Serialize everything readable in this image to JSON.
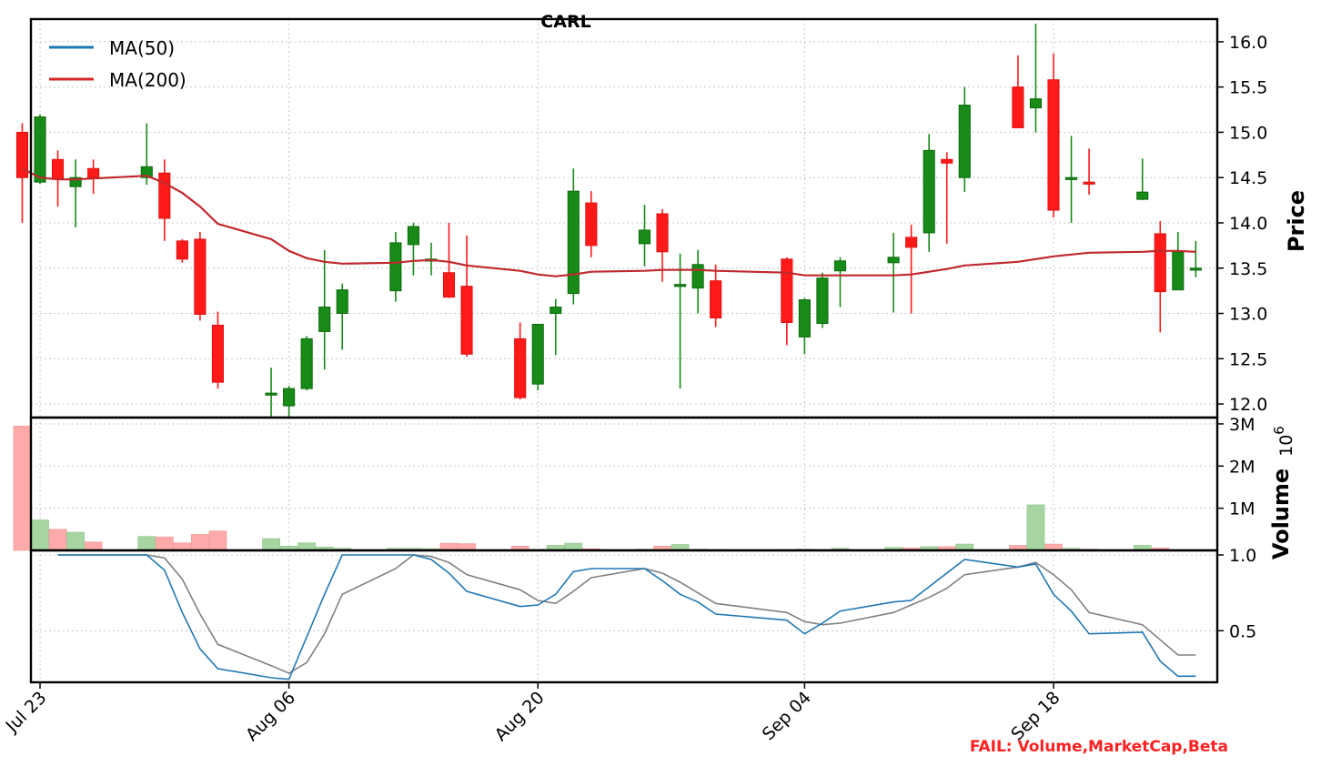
{
  "chart_data": {
    "type": "candlestick",
    "title": "CARL",
    "dates": [
      "2024-07-22",
      "2024-07-23",
      "2024-07-24",
      "2024-07-25",
      "2024-07-26",
      "2024-07-29",
      "2024-07-30",
      "2024-07-31",
      "2024-08-01",
      "2024-08-02",
      "2024-08-05",
      "2024-08-06",
      "2024-08-07",
      "2024-08-08",
      "2024-08-09",
      "2024-08-12",
      "2024-08-13",
      "2024-08-14",
      "2024-08-15",
      "2024-08-16",
      "2024-08-19",
      "2024-08-20",
      "2024-08-21",
      "2024-08-22",
      "2024-08-23",
      "2024-08-26",
      "2024-08-27",
      "2024-08-28",
      "2024-08-29",
      "2024-08-30",
      "2024-09-03",
      "2024-09-04",
      "2024-09-05",
      "2024-09-06",
      "2024-09-09",
      "2024-09-10",
      "2024-09-11",
      "2024-09-12",
      "2024-09-13",
      "2024-09-16",
      "2024-09-17",
      "2024-09-18",
      "2024-09-19",
      "2024-09-20",
      "2024-09-23",
      "2024-09-24",
      "2024-09-25",
      "2024-09-26"
    ],
    "x_tick_labels": [
      "Jul 23",
      "Aug 06",
      "Aug 20",
      "Sep 04",
      "Sep 18"
    ],
    "x_tick_dates": [
      "2024-07-23",
      "2024-08-06",
      "2024-08-20",
      "2024-09-04",
      "2024-09-18"
    ],
    "open": [
      15.0,
      14.45,
      14.7,
      14.4,
      14.6,
      14.5,
      14.55,
      13.8,
      13.82,
      12.87,
      12.12,
      11.98,
      12.17,
      12.8,
      13.0,
      13.25,
      13.76,
      13.6,
      13.45,
      13.3,
      12.72,
      12.22,
      13.0,
      13.22,
      14.22,
      13.77,
      14.1,
      13.32,
      13.28,
      13.36,
      13.6,
      12.74,
      12.89,
      13.47,
      13.56,
      13.84,
      13.89,
      14.7,
      14.5,
      15.5,
      15.27,
      15.58,
      14.5,
      14.45,
      14.26,
      13.88,
      13.26,
      13.5
    ],
    "high": [
      15.1,
      15.2,
      14.8,
      14.7,
      14.7,
      15.1,
      14.7,
      13.82,
      13.9,
      13.02,
      12.4,
      12.2,
      12.75,
      13.7,
      13.33,
      13.9,
      14.0,
      13.78,
      14.0,
      13.86,
      12.9,
      12.88,
      13.16,
      14.6,
      14.35,
      14.2,
      14.15,
      13.66,
      13.7,
      13.54,
      13.62,
      13.17,
      13.45,
      13.62,
      13.89,
      13.98,
      14.98,
      14.78,
      15.5,
      15.85,
      16.2,
      15.87,
      14.96,
      14.82,
      14.71,
      14.02,
      13.9,
      13.8
    ],
    "low": [
      14.0,
      14.43,
      14.18,
      13.95,
      14.32,
      14.42,
      13.8,
      13.56,
      12.92,
      12.17,
      11.84,
      11.85,
      12.15,
      12.38,
      12.6,
      13.13,
      13.42,
      13.42,
      13.17,
      12.52,
      12.05,
      12.15,
      12.54,
      13.1,
      13.62,
      13.52,
      13.35,
      12.17,
      13.0,
      12.85,
      12.65,
      12.55,
      12.84,
      13.07,
      13.01,
      13.0,
      13.68,
      13.77,
      14.34,
      15.05,
      15.0,
      14.06,
      14.0,
      14.31,
      14.25,
      12.79,
      13.26,
      13.4
    ],
    "close": [
      14.5,
      15.17,
      14.48,
      14.5,
      14.5,
      14.62,
      14.05,
      13.6,
      12.99,
      12.24,
      12.12,
      12.17,
      12.72,
      13.07,
      13.26,
      13.78,
      13.96,
      13.6,
      13.18,
      12.55,
      12.07,
      12.88,
      13.07,
      14.35,
      13.75,
      13.92,
      13.68,
      13.32,
      13.54,
      12.95,
      12.9,
      13.15,
      13.39,
      13.58,
      13.62,
      13.73,
      14.8,
      14.66,
      15.3,
      15.05,
      15.37,
      14.14,
      14.5,
      14.43,
      14.34,
      13.24,
      13.68,
      13.5
    ],
    "ma50": [
      14.6,
      14.5,
      14.48,
      14.48,
      14.49,
      14.52,
      14.44,
      14.33,
      14.18,
      13.99,
      13.82,
      13.69,
      13.61,
      13.57,
      13.55,
      13.56,
      13.58,
      13.59,
      13.57,
      13.53,
      13.47,
      13.43,
      13.41,
      13.43,
      13.46,
      13.47,
      13.48,
      13.48,
      13.48,
      13.47,
      13.45,
      13.42,
      13.42,
      13.42,
      13.42,
      13.43,
      13.46,
      13.49,
      13.53,
      13.57,
      13.6,
      13.63,
      13.65,
      13.67,
      13.68,
      13.69,
      13.69,
      13.68
    ],
    "ma_legend": [
      {
        "name": "MA(50)",
        "color": "#1f77b4"
      },
      {
        "name": "MA(200)",
        "color": "#d62728"
      }
    ],
    "volume": [
      2.95,
      0.72,
      0.5,
      0.43,
      0.2,
      0.33,
      0.32,
      0.18,
      0.38,
      0.46,
      0.28,
      0.1,
      0.18,
      0.08,
      0.05,
      0.05,
      0.05,
      0.04,
      0.17,
      0.16,
      0.1,
      0.03,
      0.12,
      0.17,
      0.04,
      0.03,
      0.1,
      0.14,
      0.03,
      0.02,
      0.02,
      0.03,
      0.02,
      0.05,
      0.07,
      0.06,
      0.09,
      0.09,
      0.15,
      0.12,
      1.08,
      0.15,
      0.05,
      0.03,
      0.12,
      0.06,
      0.0,
      0.0
    ],
    "volume_unit": "M",
    "osc_blue": [
      null,
      null,
      1.0,
      1.0,
      1.0,
      1.0,
      0.9,
      0.62,
      0.38,
      0.25,
      0.19,
      0.18,
      0.46,
      0.74,
      1.0,
      1.0,
      1.0,
      0.97,
      0.88,
      0.76,
      0.66,
      0.67,
      0.74,
      0.89,
      0.91,
      0.91,
      0.83,
      0.74,
      0.69,
      0.61,
      0.57,
      0.48,
      0.55,
      0.63,
      0.69,
      0.7,
      0.79,
      0.88,
      0.97,
      0.92,
      0.94,
      0.74,
      0.63,
      0.48,
      0.49,
      0.3,
      0.2,
      0.2
    ],
    "osc_gray": [
      null,
      null,
      1.0,
      1.0,
      1.0,
      1.0,
      0.98,
      0.84,
      0.61,
      0.41,
      0.27,
      0.22,
      0.29,
      0.48,
      0.74,
      0.91,
      1.0,
      0.99,
      0.95,
      0.87,
      0.77,
      0.7,
      0.68,
      0.76,
      0.85,
      0.91,
      0.88,
      0.82,
      0.75,
      0.68,
      0.62,
      0.56,
      0.54,
      0.55,
      0.62,
      0.67,
      0.72,
      0.78,
      0.87,
      0.92,
      0.95,
      0.87,
      0.77,
      0.62,
      0.54,
      0.44,
      0.34,
      0.34
    ],
    "price_axis": {
      "label": "Price",
      "ylim": [
        11.85,
        16.25
      ],
      "ticks": [
        12.0,
        12.5,
        13.0,
        13.5,
        14.0,
        14.5,
        15.0,
        15.5,
        16.0
      ],
      "tick_labels": [
        "12.0",
        "12.5",
        "13.0",
        "13.5",
        "14.0",
        "14.5",
        "15.0",
        "15.5",
        "16.0"
      ]
    },
    "volume_axis": {
      "label": "Volume",
      "ylim": [
        0,
        3.15
      ],
      "ticks": [
        1,
        2,
        3
      ],
      "tick_labels": [
        "1M",
        "2M",
        "3M"
      ],
      "offset_text": "1e6"
    },
    "osc_axis": {
      "ylim": [
        0.16,
        1.03
      ],
      "ticks": [
        0.5,
        1.0
      ],
      "tick_labels": [
        "0.5",
        "1.0"
      ]
    },
    "up_color": "#178a17",
    "down_color": "#ff1a1a",
    "volume_up_color": "#a6d5a1",
    "volume_down_color": "#ffaaaa",
    "grid": true,
    "legend_placement": "top-left",
    "footer_text": "FAIL: Volume,MarketCap,Beta"
  }
}
